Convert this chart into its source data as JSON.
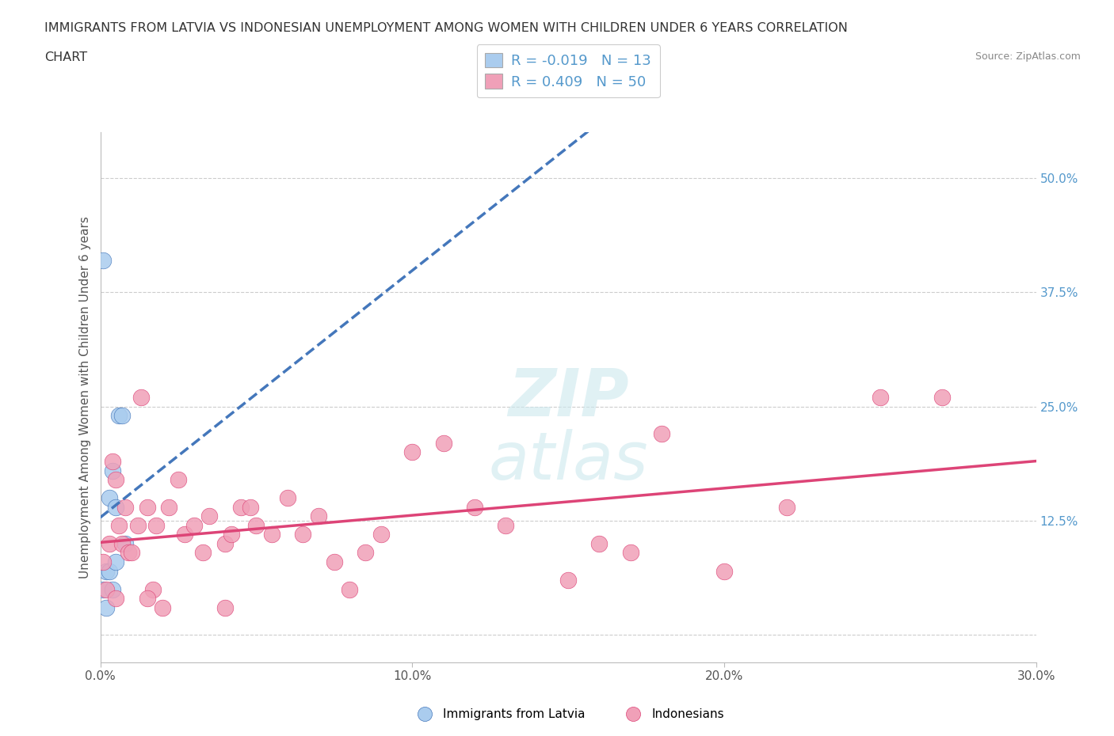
{
  "title_line1": "IMMIGRANTS FROM LATVIA VS INDONESIAN UNEMPLOYMENT AMONG WOMEN WITH CHILDREN UNDER 6 YEARS CORRELATION",
  "title_line2": "CHART",
  "source": "Source: ZipAtlas.com",
  "ylabel": "Unemployment Among Women with Children Under 6 years",
  "xlim": [
    0.0,
    0.3
  ],
  "ylim": [
    -0.03,
    0.55
  ],
  "xticks": [
    0.0,
    0.1,
    0.2,
    0.3
  ],
  "xtick_labels": [
    "0.0%",
    "10.0%",
    "20.0%",
    "30.0%"
  ],
  "yticks_right": [
    0.0,
    0.125,
    0.25,
    0.375,
    0.5
  ],
  "ytick_labels_right": [
    "",
    "12.5%",
    "25.0%",
    "37.5%",
    "50.0%"
  ],
  "blue_color": "#aaccee",
  "pink_color": "#f0a0b8",
  "blue_line_color": "#4477bb",
  "pink_line_color": "#dd4477",
  "grid_color": "#cccccc",
  "legend_R1": "-0.019",
  "legend_N1": "13",
  "legend_R2": "0.409",
  "legend_N2": "50",
  "blue_scatter_x": [
    0.001,
    0.001,
    0.002,
    0.002,
    0.003,
    0.003,
    0.004,
    0.004,
    0.005,
    0.005,
    0.006,
    0.007,
    0.008
  ],
  "blue_scatter_y": [
    0.41,
    0.05,
    0.03,
    0.07,
    0.15,
    0.07,
    0.18,
    0.05,
    0.14,
    0.08,
    0.24,
    0.24,
    0.1
  ],
  "pink_scatter_x": [
    0.001,
    0.002,
    0.003,
    0.004,
    0.005,
    0.006,
    0.007,
    0.008,
    0.009,
    0.01,
    0.012,
    0.013,
    0.015,
    0.017,
    0.018,
    0.02,
    0.022,
    0.025,
    0.027,
    0.03,
    0.033,
    0.035,
    0.04,
    0.042,
    0.045,
    0.048,
    0.05,
    0.055,
    0.06,
    0.065,
    0.07,
    0.075,
    0.08,
    0.085,
    0.09,
    0.1,
    0.11,
    0.12,
    0.13,
    0.15,
    0.16,
    0.17,
    0.18,
    0.2,
    0.22,
    0.25,
    0.27,
    0.04,
    0.005,
    0.015
  ],
  "pink_scatter_y": [
    0.08,
    0.05,
    0.1,
    0.19,
    0.17,
    0.12,
    0.1,
    0.14,
    0.09,
    0.09,
    0.12,
    0.26,
    0.14,
    0.05,
    0.12,
    0.03,
    0.14,
    0.17,
    0.11,
    0.12,
    0.09,
    0.13,
    0.1,
    0.11,
    0.14,
    0.14,
    0.12,
    0.11,
    0.15,
    0.11,
    0.13,
    0.08,
    0.05,
    0.09,
    0.11,
    0.2,
    0.21,
    0.14,
    0.12,
    0.06,
    0.1,
    0.09,
    0.22,
    0.07,
    0.14,
    0.26,
    0.26,
    0.03,
    0.04,
    0.04
  ],
  "background_color": "#ffffff"
}
